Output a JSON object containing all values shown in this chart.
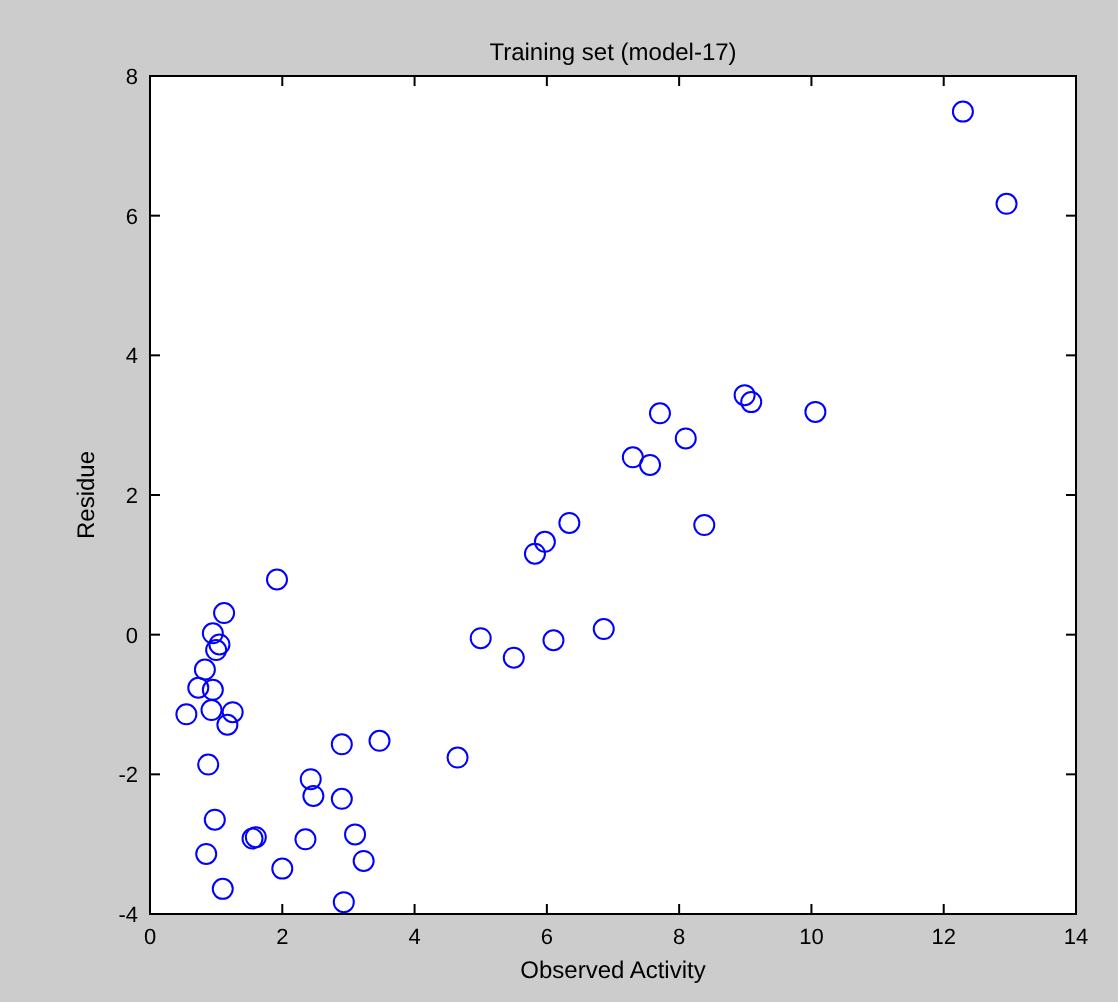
{
  "chart_data": {
    "type": "scatter",
    "title": "Training set (model-17)",
    "xlabel": "Observed Activity",
    "ylabel": "Residue",
    "x": [
      1.92,
      1.12,
      0.95,
      1.05,
      1.0,
      0.83,
      0.73,
      0.95,
      0.55,
      0.93,
      1.25,
      1.17,
      0.88,
      2.9,
      3.47,
      4.65,
      2.43,
      2.47,
      2.9,
      0.98,
      1.55,
      1.6,
      2.35,
      3.1,
      3.23,
      0.85,
      2.0,
      1.1,
      2.93,
      5.0,
      5.5,
      6.1,
      6.86,
      5.82,
      5.97,
      6.34,
      8.38,
      7.3,
      7.56,
      7.71,
      8.1,
      8.99,
      9.09,
      10.06,
      12.29,
      12.95
    ],
    "series": [
      {
        "color": "#0000ff",
        "values": [
          0.79,
          0.31,
          0.02,
          -0.14,
          -0.22,
          -0.5,
          -0.76,
          -0.79,
          -1.14,
          -1.08,
          -1.11,
          -1.29,
          -1.86,
          -1.57,
          -1.52,
          -1.76,
          -2.07,
          -2.31,
          -2.35,
          -2.65,
          -2.92,
          -2.9,
          -2.93,
          -2.86,
          -3.24,
          -3.14,
          -3.35,
          -3.64,
          -3.83,
          -0.05,
          -0.33,
          -0.08,
          0.08,
          1.16,
          1.33,
          1.6,
          1.57,
          2.54,
          2.43,
          3.17,
          2.81,
          3.43,
          3.33,
          3.19,
          7.49,
          6.17
        ]
      }
    ],
    "xlim": [
      0,
      14
    ],
    "xticks": [
      0,
      2,
      4,
      6,
      8,
      10,
      12,
      14
    ],
    "ylim": [
      -4,
      8
    ],
    "yticks": [
      -4,
      -2,
      0,
      2,
      4,
      6,
      8
    ],
    "marker": "circle",
    "grid": false
  }
}
